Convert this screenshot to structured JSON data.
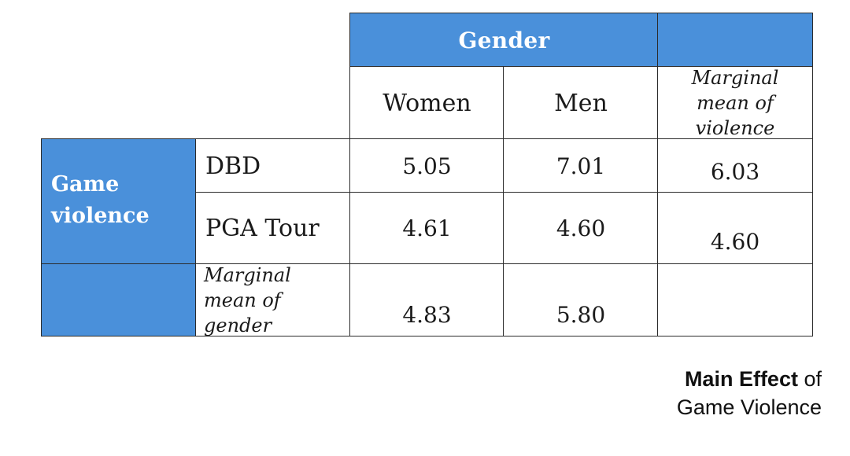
{
  "table": {
    "column_group_header": "Gender",
    "columns": [
      "Women",
      "Men"
    ],
    "marginal_violence_header": "Marginal mean of violence",
    "row_group_header": "Game violence",
    "rows": [
      {
        "label": "DBD",
        "women": "5.05",
        "men": "7.01",
        "marginal": "6.03"
      },
      {
        "label": "PGA Tour",
        "women": "4.61",
        "men": "4.60",
        "marginal": "4.60"
      }
    ],
    "marginal_gender_row": {
      "label": "Marginal mean of gender",
      "women": "4.83",
      "men": "5.80"
    },
    "colors": {
      "header_blue": "#4a90da",
      "border": "#2b2b2b"
    }
  },
  "caption": {
    "bold_part": "Main Effect",
    "rest_line1": " of",
    "line2": "Game Violence"
  }
}
